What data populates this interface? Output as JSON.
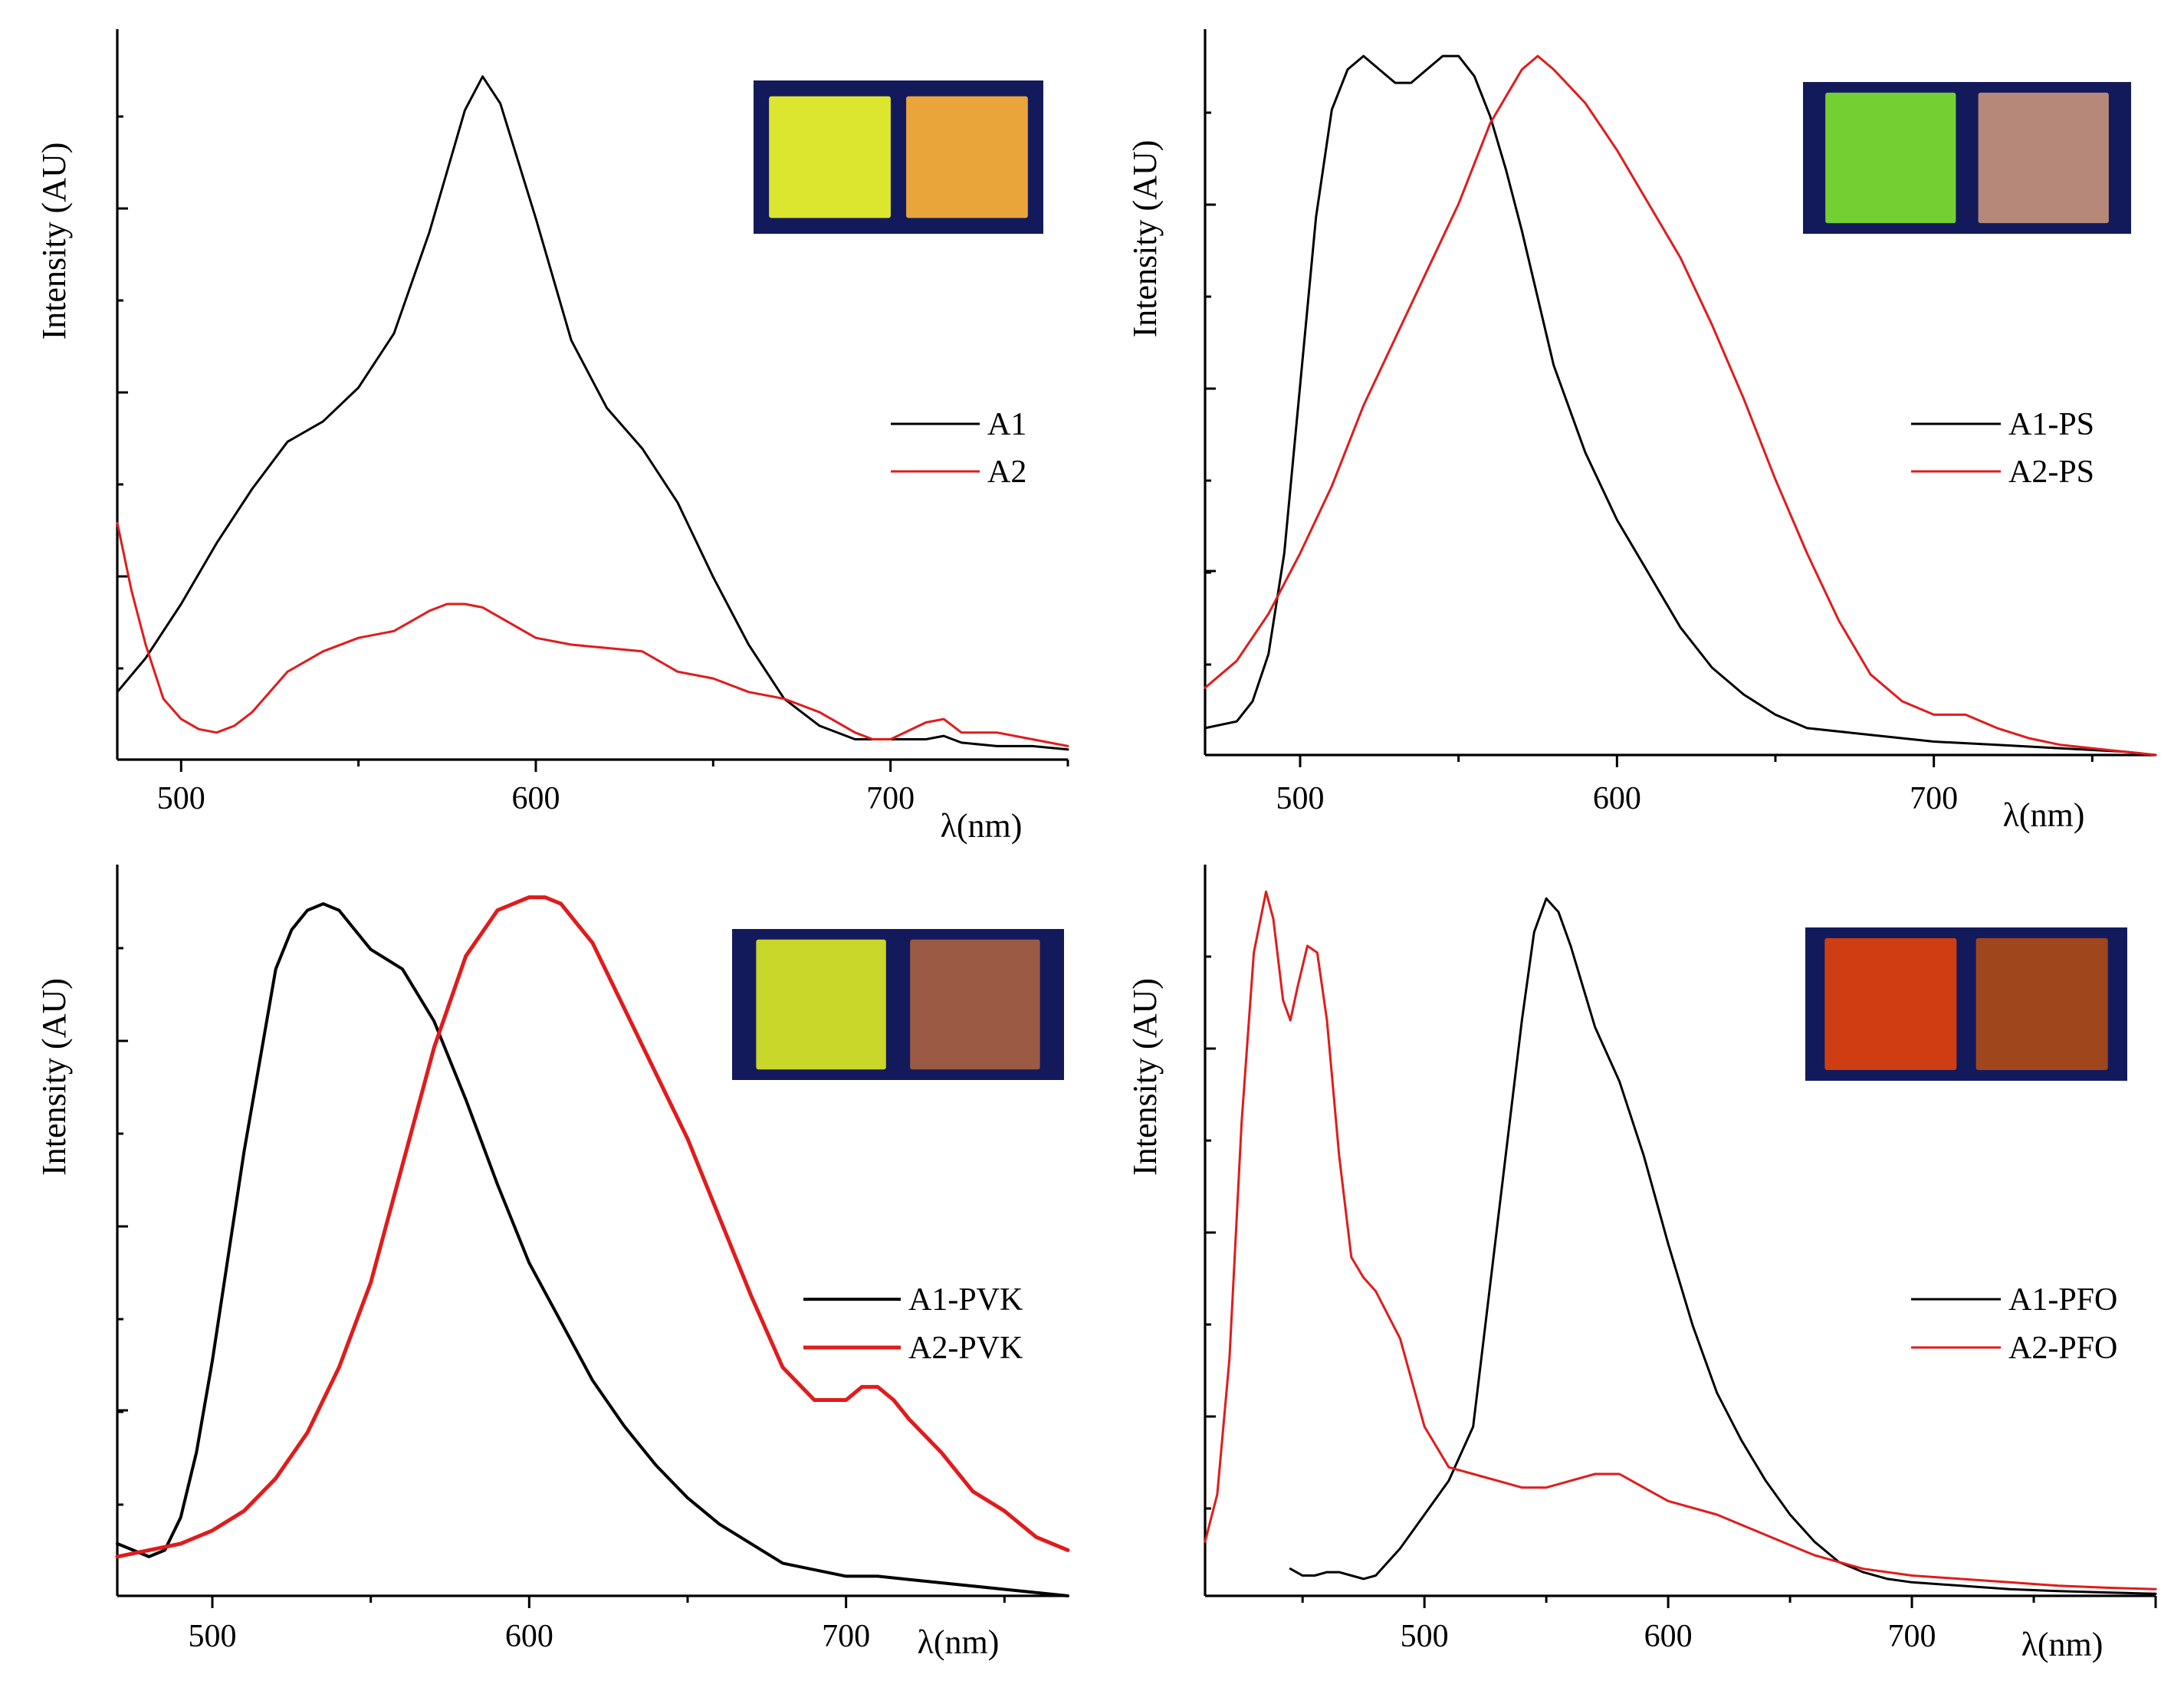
{
  "figure_title": "",
  "chart_data": [
    {
      "type": "line",
      "panel": "top-left",
      "title": "",
      "xlabel": "λ(nm)",
      "ylabel": "Intensity (AU)",
      "xlim": [
        482,
        750
      ],
      "ylim": [
        0,
        1.08
      ],
      "xticks": [
        500,
        600,
        700
      ],
      "xtick_labels": [
        "500",
        "600",
        "700"
      ],
      "legend_position": "right-middle",
      "inset": {
        "description": "two square film samples under UV light",
        "colors": [
          "#dce62e",
          "#e9a43a"
        ],
        "background": "#131a5c"
      },
      "series": [
        {
          "name": "A1",
          "color": "#000000",
          "width": 3,
          "x": [
            482,
            490,
            500,
            510,
            520,
            530,
            540,
            550,
            560,
            570,
            580,
            585,
            590,
            600,
            610,
            620,
            630,
            640,
            650,
            660,
            670,
            680,
            690,
            700,
            710,
            715,
            720,
            730,
            740,
            750
          ],
          "y": [
            0.1,
            0.15,
            0.23,
            0.32,
            0.4,
            0.47,
            0.5,
            0.55,
            0.63,
            0.78,
            0.96,
            1.01,
            0.97,
            0.8,
            0.62,
            0.52,
            0.46,
            0.38,
            0.27,
            0.17,
            0.09,
            0.05,
            0.03,
            0.03,
            0.03,
            0.035,
            0.025,
            0.02,
            0.02,
            0.015
          ]
        },
        {
          "name": "A2",
          "color": "#e11b1b",
          "width": 3,
          "x": [
            482,
            486,
            490,
            495,
            500,
            505,
            510,
            515,
            520,
            530,
            540,
            550,
            560,
            570,
            575,
            580,
            585,
            590,
            600,
            610,
            620,
            630,
            640,
            650,
            660,
            670,
            680,
            690,
            695,
            700,
            710,
            715,
            720,
            730,
            740,
            750
          ],
          "y": [
            0.35,
            0.25,
            0.17,
            0.09,
            0.06,
            0.045,
            0.04,
            0.05,
            0.07,
            0.13,
            0.16,
            0.18,
            0.19,
            0.22,
            0.23,
            0.23,
            0.225,
            0.21,
            0.18,
            0.17,
            0.165,
            0.16,
            0.13,
            0.12,
            0.1,
            0.09,
            0.07,
            0.04,
            0.03,
            0.03,
            0.055,
            0.06,
            0.04,
            0.04,
            0.03,
            0.02
          ]
        }
      ]
    },
    {
      "type": "line",
      "panel": "top-right",
      "title": "",
      "xlabel": "λ(nm)",
      "ylabel": "Intensity (AU)",
      "xlim": [
        470,
        770
      ],
      "ylim": [
        0,
        1.08
      ],
      "xticks": [
        500,
        600,
        700
      ],
      "xtick_labels": [
        "500",
        "600",
        "700"
      ],
      "legend_position": "right-middle",
      "inset": {
        "description": "two square film samples under UV light",
        "colors": [
          "#73cf32",
          "#b5887a"
        ],
        "background": "#131a5c"
      },
      "series": [
        {
          "name": "A1-PS",
          "color": "#000000",
          "width": 3,
          "x": [
            470,
            480,
            485,
            490,
            495,
            500,
            505,
            510,
            515,
            520,
            525,
            530,
            535,
            540,
            545,
            550,
            555,
            560,
            565,
            570,
            575,
            580,
            590,
            600,
            610,
            620,
            630,
            640,
            650,
            660,
            680,
            700,
            720,
            740,
            760,
            770
          ],
          "y": [
            0.04,
            0.05,
            0.08,
            0.15,
            0.3,
            0.55,
            0.8,
            0.96,
            1.02,
            1.04,
            1.02,
            1.0,
            1.0,
            1.02,
            1.04,
            1.04,
            1.01,
            0.95,
            0.87,
            0.78,
            0.68,
            0.58,
            0.45,
            0.35,
            0.27,
            0.19,
            0.13,
            0.09,
            0.06,
            0.04,
            0.03,
            0.02,
            0.015,
            0.01,
            0.005,
            0.0
          ]
        },
        {
          "name": "A2-PS",
          "color": "#e11b1b",
          "width": 3,
          "x": [
            470,
            480,
            490,
            500,
            510,
            520,
            530,
            540,
            550,
            560,
            570,
            575,
            580,
            590,
            600,
            610,
            620,
            630,
            640,
            650,
            660,
            670,
            680,
            690,
            700,
            710,
            720,
            730,
            740,
            750,
            760,
            770
          ],
          "y": [
            0.1,
            0.14,
            0.21,
            0.3,
            0.4,
            0.52,
            0.62,
            0.72,
            0.82,
            0.94,
            1.02,
            1.04,
            1.02,
            0.97,
            0.9,
            0.82,
            0.74,
            0.64,
            0.53,
            0.41,
            0.3,
            0.2,
            0.12,
            0.08,
            0.06,
            0.06,
            0.04,
            0.025,
            0.015,
            0.01,
            0.005,
            0.0
          ]
        }
      ]
    },
    {
      "type": "line",
      "panel": "bottom-left",
      "title": "",
      "xlabel": "λ(nm)",
      "ylabel": "Intensity (AU)",
      "xlim": [
        470,
        770
      ],
      "ylim": [
        0,
        1.12
      ],
      "xticks": [
        500,
        600,
        700
      ],
      "xtick_labels": [
        "500",
        "600",
        "700"
      ],
      "legend_position": "right-middle",
      "inset": {
        "description": "two square film samples under UV light",
        "colors": [
          "#c9d72a",
          "#9a5a44"
        ],
        "background": "#131a5c"
      },
      "series": [
        {
          "name": "A1-PVK",
          "color": "#000000",
          "width": 4,
          "x": [
            470,
            475,
            480,
            485,
            490,
            495,
            500,
            510,
            520,
            525,
            530,
            535,
            540,
            545,
            550,
            560,
            570,
            580,
            590,
            600,
            610,
            620,
            630,
            640,
            650,
            660,
            670,
            680,
            690,
            700,
            710,
            720,
            730,
            740,
            750,
            760,
            770
          ],
          "y": [
            0.08,
            0.07,
            0.06,
            0.07,
            0.12,
            0.22,
            0.36,
            0.68,
            0.96,
            1.02,
            1.05,
            1.06,
            1.05,
            1.02,
            0.99,
            0.96,
            0.88,
            0.76,
            0.63,
            0.51,
            0.42,
            0.33,
            0.26,
            0.2,
            0.15,
            0.11,
            0.08,
            0.05,
            0.04,
            0.03,
            0.03,
            0.025,
            0.02,
            0.015,
            0.01,
            0.005,
            0.0
          ]
        },
        {
          "name": "A2-PVK",
          "color": "#e11b1b",
          "width": 5,
          "x": [
            470,
            480,
            490,
            500,
            510,
            520,
            530,
            540,
            550,
            560,
            570,
            580,
            590,
            600,
            605,
            610,
            615,
            620,
            630,
            640,
            650,
            660,
            670,
            680,
            690,
            700,
            705,
            710,
            715,
            720,
            730,
            740,
            750,
            760,
            770
          ],
          "y": [
            0.06,
            0.07,
            0.08,
            0.1,
            0.13,
            0.18,
            0.25,
            0.35,
            0.48,
            0.66,
            0.84,
            0.98,
            1.05,
            1.07,
            1.07,
            1.06,
            1.03,
            1.0,
            0.9,
            0.8,
            0.7,
            0.58,
            0.46,
            0.35,
            0.3,
            0.3,
            0.32,
            0.32,
            0.3,
            0.27,
            0.22,
            0.16,
            0.13,
            0.09,
            0.07
          ]
        }
      ]
    },
    {
      "type": "line",
      "panel": "bottom-right",
      "title": "",
      "xlabel": "λ(nm)",
      "ylabel": "Intensity (AU)",
      "xlim": [
        410,
        800
      ],
      "ylim": [
        0,
        1.08
      ],
      "xticks": [
        500,
        600,
        700
      ],
      "xtick_labels": [
        "500",
        "600",
        "700"
      ],
      "legend_position": "right-middle",
      "inset": {
        "description": "two square film samples under UV light",
        "colors": [
          "#cf3e13",
          "#a0461c"
        ],
        "background": "#131a5c"
      },
      "series": [
        {
          "name": "A1-PFO",
          "color": "#000000",
          "width": 3,
          "x": [
            445,
            450,
            455,
            460,
            465,
            470,
            475,
            480,
            490,
            500,
            510,
            520,
            530,
            540,
            545,
            550,
            555,
            560,
            570,
            580,
            590,
            600,
            610,
            620,
            630,
            640,
            650,
            660,
            670,
            680,
            690,
            700,
            720,
            740,
            760,
            780,
            800
          ],
          "y": [
            0.04,
            0.03,
            0.03,
            0.035,
            0.035,
            0.03,
            0.025,
            0.03,
            0.07,
            0.12,
            0.17,
            0.25,
            0.55,
            0.85,
            0.98,
            1.03,
            1.01,
            0.96,
            0.84,
            0.76,
            0.65,
            0.52,
            0.4,
            0.3,
            0.23,
            0.17,
            0.12,
            0.08,
            0.05,
            0.035,
            0.025,
            0.02,
            0.015,
            0.01,
            0.007,
            0.005,
            0.003
          ]
        },
        {
          "name": "A2-PFO",
          "color": "#e11b1b",
          "width": 3,
          "x": [
            410,
            415,
            420,
            425,
            430,
            435,
            438,
            442,
            445,
            448,
            452,
            456,
            460,
            465,
            470,
            475,
            480,
            490,
            500,
            510,
            520,
            530,
            540,
            550,
            560,
            570,
            580,
            590,
            600,
            620,
            640,
            660,
            680,
            700,
            720,
            740,
            760,
            780,
            800
          ],
          "y": [
            0.08,
            0.15,
            0.35,
            0.7,
            0.95,
            1.04,
            1.0,
            0.88,
            0.85,
            0.9,
            0.96,
            0.95,
            0.85,
            0.65,
            0.5,
            0.47,
            0.45,
            0.38,
            0.25,
            0.19,
            0.18,
            0.17,
            0.16,
            0.16,
            0.17,
            0.18,
            0.18,
            0.16,
            0.14,
            0.12,
            0.09,
            0.06,
            0.04,
            0.03,
            0.025,
            0.02,
            0.015,
            0.012,
            0.01
          ]
        }
      ]
    }
  ]
}
